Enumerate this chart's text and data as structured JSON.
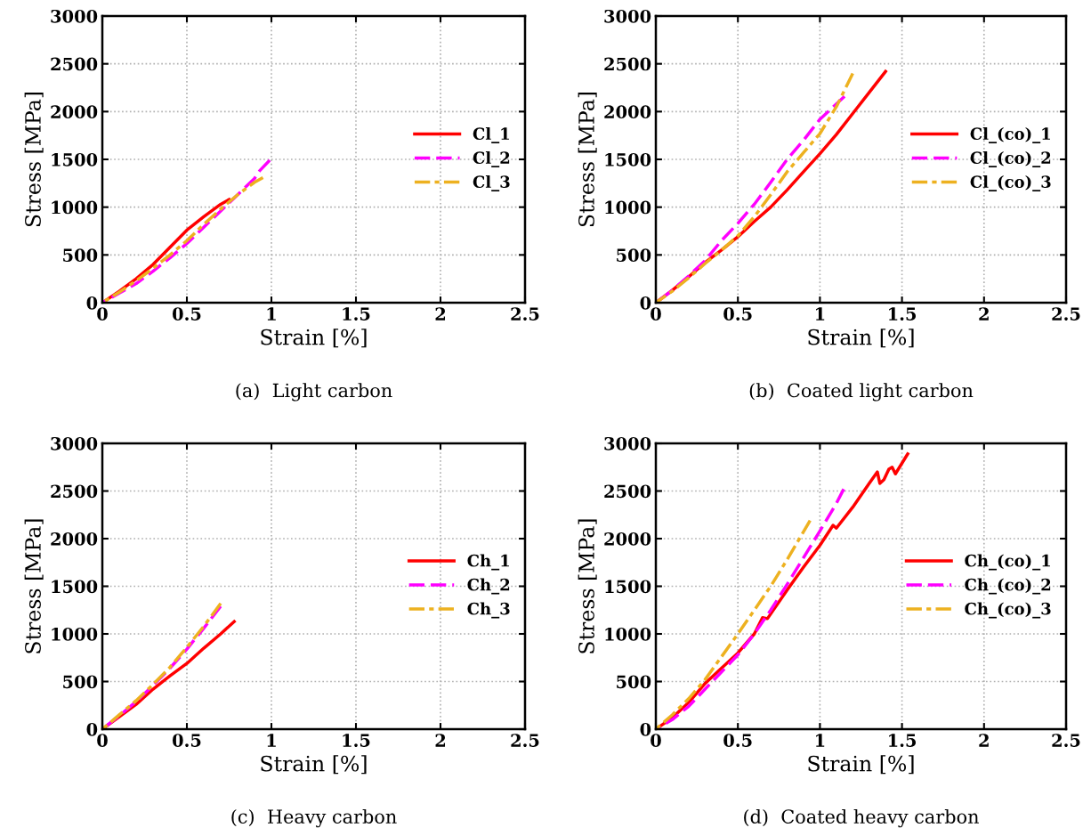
{
  "chart_data": [
    {
      "type": "line",
      "xlabel": "Strain [%]",
      "ylabel": "Stress [MPa]",
      "annotations": [
        "(a)  Light carbon"
      ],
      "xlim": [
        0,
        2.5
      ],
      "xticks": [
        0,
        0.5,
        1,
        1.5,
        2,
        2.5
      ],
      "ylim": [
        0,
        3000
      ],
      "yticks": [
        0,
        500,
        1000,
        1500,
        2000,
        2500,
        3000
      ],
      "grid": true,
      "legend": "right",
      "series": [
        {
          "name": "Cl_1",
          "color": "#ff0000",
          "line_style": "solid",
          "x": [
            0,
            0.1,
            0.2,
            0.3,
            0.4,
            0.5,
            0.6,
            0.7,
            0.75
          ],
          "values": [
            0,
            120,
            250,
            400,
            580,
            760,
            900,
            1030,
            1080
          ]
        },
        {
          "name": "Cl_2",
          "color": "#ff00ff",
          "line_style": "dashed",
          "x": [
            0,
            0.1,
            0.2,
            0.3,
            0.4,
            0.5,
            0.6,
            0.7,
            0.8,
            0.9,
            0.93,
            0.99
          ],
          "values": [
            0,
            100,
            200,
            330,
            470,
            620,
            790,
            960,
            1130,
            1300,
            1380,
            1490
          ]
        },
        {
          "name": "Cl_3",
          "color": "#edb120",
          "line_style": "dashdot",
          "x": [
            0,
            0.1,
            0.2,
            0.3,
            0.4,
            0.5,
            0.6,
            0.7,
            0.8,
            0.9,
            0.95
          ],
          "values": [
            0,
            110,
            230,
            360,
            500,
            650,
            820,
            980,
            1130,
            1260,
            1310
          ]
        }
      ]
    },
    {
      "type": "line",
      "xlabel": "Strain [%]",
      "ylabel": "Stress [MPa]",
      "annotations": [
        "(b)  Coated light carbon"
      ],
      "xlim": [
        0,
        2.5
      ],
      "xticks": [
        0,
        0.5,
        1,
        1.5,
        2,
        2.5
      ],
      "ylim": [
        0,
        3000
      ],
      "yticks": [
        0,
        500,
        1000,
        1500,
        2000,
        2500,
        3000
      ],
      "grid": true,
      "legend": "right",
      "series": [
        {
          "name": "Cl_(co)_1",
          "color": "#ff0000",
          "line_style": "solid",
          "x": [
            0,
            0.1,
            0.2,
            0.3,
            0.4,
            0.5,
            0.6,
            0.7,
            0.8,
            0.9,
            1.0,
            1.1,
            1.2,
            1.3,
            1.4
          ],
          "values": [
            0,
            130,
            270,
            420,
            550,
            690,
            850,
            1000,
            1180,
            1370,
            1560,
            1760,
            1980,
            2200,
            2420
          ]
        },
        {
          "name": "Cl_(co)_2",
          "color": "#ff00ff",
          "line_style": "dashed",
          "x": [
            0,
            0.1,
            0.2,
            0.3,
            0.4,
            0.5,
            0.6,
            0.7,
            0.8,
            0.9,
            1.0,
            1.1,
            1.15
          ],
          "values": [
            0,
            130,
            280,
            440,
            650,
            830,
            1030,
            1260,
            1500,
            1700,
            1920,
            2080,
            2160
          ]
        },
        {
          "name": "Cl_(co)_3",
          "color": "#edb120",
          "line_style": "dashdot",
          "x": [
            0,
            0.1,
            0.2,
            0.3,
            0.4,
            0.5,
            0.6,
            0.7,
            0.8,
            0.9,
            1.0,
            1.1,
            1.2
          ],
          "values": [
            0,
            120,
            260,
            410,
            550,
            700,
            900,
            1130,
            1370,
            1570,
            1770,
            2050,
            2400
          ]
        }
      ]
    },
    {
      "type": "line",
      "xlabel": "Strain [%]",
      "ylabel": "Stress [MPa]",
      "annotations": [
        "(c)  Heavy carbon"
      ],
      "xlim": [
        0,
        2.5
      ],
      "xticks": [
        0,
        0.5,
        1,
        1.5,
        2,
        2.5
      ],
      "ylim": [
        0,
        3000
      ],
      "yticks": [
        0,
        500,
        1000,
        1500,
        2000,
        2500,
        3000
      ],
      "grid": true,
      "legend": "right",
      "series": [
        {
          "name": "Ch_1",
          "color": "#ff0000",
          "line_style": "solid",
          "x": [
            0,
            0.1,
            0.2,
            0.3,
            0.4,
            0.5,
            0.6,
            0.7,
            0.78
          ],
          "values": [
            0,
            130,
            260,
            420,
            560,
            690,
            850,
            1000,
            1130
          ]
        },
        {
          "name": "Ch_2",
          "color": "#ff00ff",
          "line_style": "dashed",
          "x": [
            0,
            0.1,
            0.2,
            0.3,
            0.4,
            0.5,
            0.6,
            0.7
          ],
          "values": [
            0,
            140,
            290,
            460,
            640,
            840,
            1060,
            1290
          ]
        },
        {
          "name": "Ch_3",
          "color": "#edb120",
          "line_style": "dashdot",
          "x": [
            0,
            0.1,
            0.2,
            0.3,
            0.4,
            0.5,
            0.6,
            0.7
          ],
          "values": [
            0,
            150,
            300,
            470,
            650,
            860,
            1080,
            1320
          ]
        }
      ]
    },
    {
      "type": "line",
      "xlabel": "Strain [%]",
      "ylabel": "Stress [MPa]",
      "annotations": [
        "(d)  Coated heavy carbon"
      ],
      "xlim": [
        0,
        2.5
      ],
      "xticks": [
        0,
        0.5,
        1,
        1.5,
        2,
        2.5
      ],
      "ylim": [
        0,
        3000
      ],
      "yticks": [
        0,
        500,
        1000,
        1500,
        2000,
        2500,
        3000
      ],
      "grid": true,
      "legend": "right",
      "series": [
        {
          "name": "Ch_(co)_1",
          "color": "#ff0000",
          "line_style": "solid",
          "x": [
            0,
            0.1,
            0.2,
            0.3,
            0.4,
            0.5,
            0.6,
            0.65,
            0.68,
            0.8,
            0.9,
            1.0,
            1.08,
            1.1,
            1.2,
            1.3,
            1.35,
            1.365,
            1.39,
            1.42,
            1.44,
            1.46,
            1.535
          ],
          "values": [
            0,
            120,
            280,
            480,
            640,
            800,
            1000,
            1170,
            1160,
            1460,
            1700,
            1930,
            2140,
            2110,
            2330,
            2580,
            2700,
            2580,
            2620,
            2730,
            2750,
            2680,
            2890
          ]
        },
        {
          "name": "Ch_(co)_2",
          "color": "#ff00ff",
          "line_style": "dashed",
          "x": [
            0,
            0.1,
            0.2,
            0.3,
            0.4,
            0.5,
            0.6,
            0.7,
            0.8,
            0.9,
            1.0,
            1.1,
            1.145
          ],
          "values": [
            0,
            100,
            240,
            420,
            600,
            780,
            1000,
            1250,
            1520,
            1800,
            2080,
            2370,
            2520
          ]
        },
        {
          "name": "Ch_(co)_3",
          "color": "#edb120",
          "line_style": "dashdot",
          "x": [
            0,
            0.1,
            0.2,
            0.3,
            0.4,
            0.5,
            0.6,
            0.7,
            0.8,
            0.94
          ],
          "values": [
            0,
            150,
            320,
            520,
            760,
            1000,
            1250,
            1500,
            1780,
            2190
          ]
        }
      ]
    }
  ]
}
